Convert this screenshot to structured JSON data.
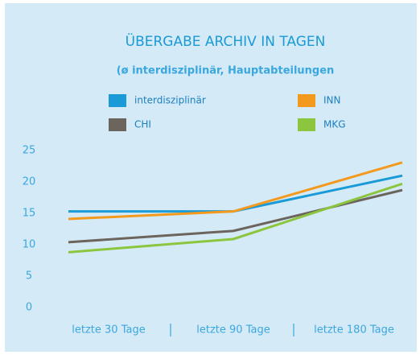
{
  "chart_data": {
    "type": "line",
    "title": "ÜBERGABE ARCHIV IN TAGEN",
    "subtitle": "(ø interdisziplinär, Hauptabteilungen",
    "categories": [
      "letzte 30 Tage",
      "letzte 90 Tage",
      "letzte 180 Tage"
    ],
    "series": [
      {
        "name": "interdisziplinär",
        "color": "#1a9ad6",
        "values": [
          15.3,
          15.3,
          21
        ]
      },
      {
        "name": "INN",
        "color": "#f39a1e",
        "values": [
          14.1,
          15.3,
          23.1
        ]
      },
      {
        "name": "CHI",
        "color": "#6b655e",
        "values": [
          10.4,
          12.2,
          18.7
        ]
      },
      {
        "name": "MKG",
        "color": "#8cc63f",
        "values": [
          8.8,
          10.9,
          19.7
        ]
      }
    ],
    "ylim": [
      0,
      25
    ],
    "yticks": [
      0,
      5,
      10,
      15,
      20,
      25
    ],
    "grid": false
  }
}
